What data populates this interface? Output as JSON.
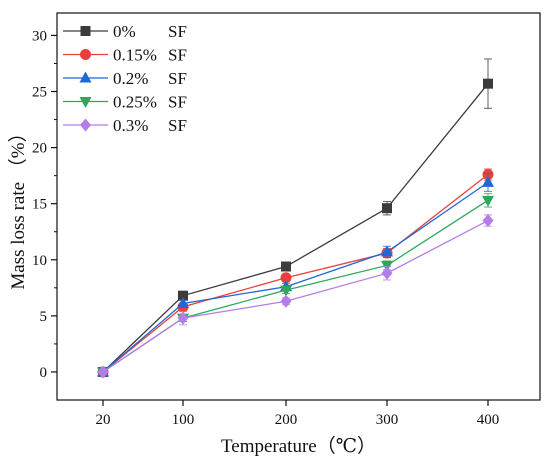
{
  "chart_data": {
    "type": "line",
    "xlabel": "Temperature（℃）",
    "ylabel": "Mass loss rate （%）",
    "categories": [
      "20",
      "100",
      "200",
      "300",
      "400"
    ],
    "yticks": [
      "0",
      "5",
      "10",
      "15",
      "20",
      "25",
      "30"
    ],
    "ylim": [
      -2.5,
      32
    ],
    "grid": false,
    "legend_position": "top-left",
    "series": [
      {
        "name": "0%",
        "suffix": "SF",
        "color": "#3b3b3b",
        "marker": "square",
        "values": [
          0.0,
          6.8,
          9.4,
          14.6,
          25.7
        ],
        "errors": [
          0.2,
          0.3,
          0.3,
          0.6,
          2.2
        ]
      },
      {
        "name": "0.15%",
        "suffix": "SF",
        "color": "#e8413d",
        "marker": "circle",
        "values": [
          0.0,
          5.8,
          8.4,
          10.6,
          17.6
        ],
        "errors": [
          0.2,
          0.3,
          0.3,
          0.4,
          0.5
        ]
      },
      {
        "name": "0.2%",
        "suffix": "SF",
        "color": "#1f68d6",
        "marker": "triangle-up",
        "values": [
          0.0,
          6.1,
          7.6,
          10.7,
          16.9
        ],
        "errors": [
          0.2,
          0.3,
          0.3,
          0.5,
          0.8
        ]
      },
      {
        "name": "0.25%",
        "suffix": "SF",
        "color": "#2da85a",
        "marker": "triangle-down",
        "values": [
          0.0,
          4.8,
          7.3,
          9.5,
          15.3
        ],
        "errors": [
          0.2,
          0.3,
          0.3,
          0.4,
          0.6
        ]
      },
      {
        "name": "0.3%",
        "suffix": "SF",
        "color": "#b57de8",
        "marker": "diamond",
        "values": [
          0.0,
          4.8,
          6.3,
          8.8,
          13.5
        ],
        "errors": [
          0.2,
          0.6,
          0.3,
          0.6,
          0.5
        ]
      }
    ]
  }
}
